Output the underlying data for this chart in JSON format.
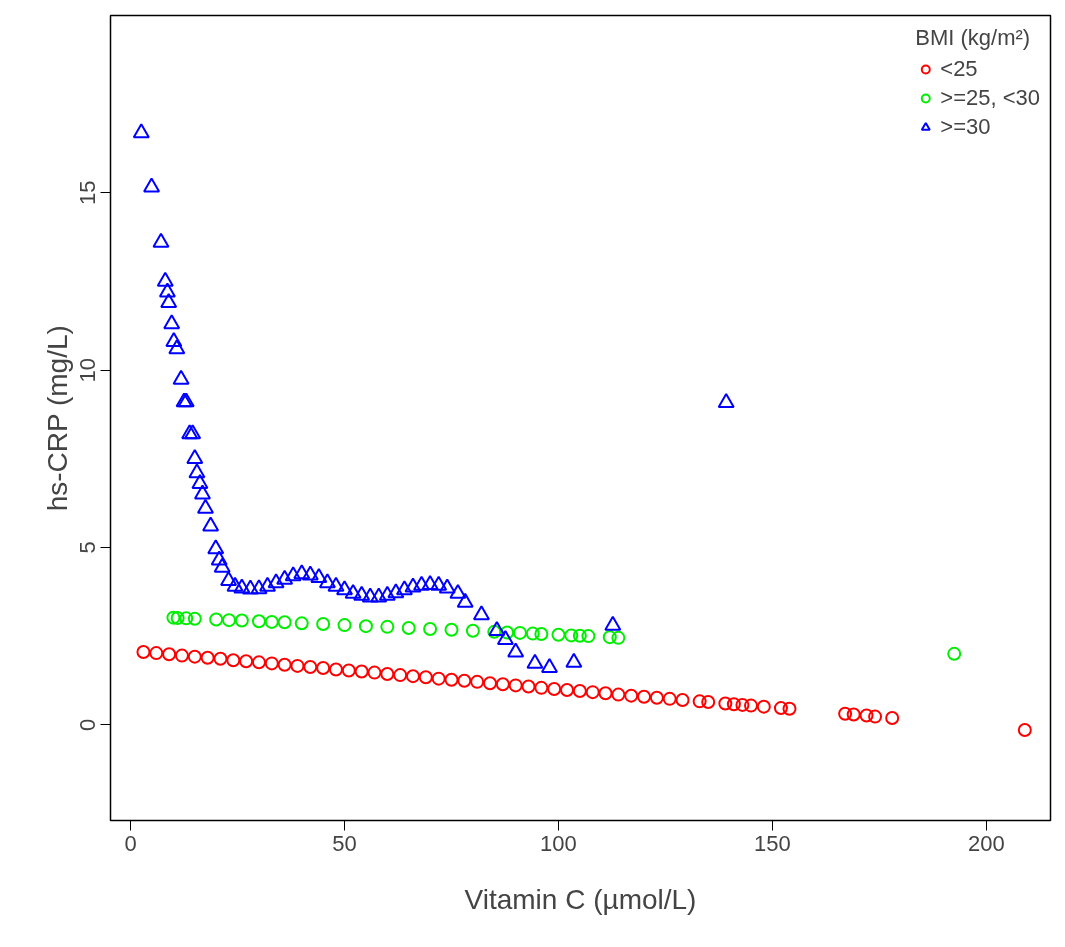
{
  "chart_data": {
    "type": "scatter",
    "xlabel": "Vitamin C (µmol/L)",
    "ylabel": "hs-CRP (mg/L)",
    "legend_title": "BMI (kg/m²)",
    "legend": "top right",
    "grid": false,
    "xlim": [
      -4.7,
      215
    ],
    "ylim": [
      -2.7,
      20
    ],
    "xticks": [
      0,
      50,
      100,
      150,
      200
    ],
    "yticks": [
      0,
      5,
      10,
      15
    ],
    "series": [
      {
        "name": "<25",
        "color": "#ff0000",
        "marker": "circle",
        "x": [
          3,
          6,
          9,
          12,
          15,
          18,
          21,
          24,
          27,
          30,
          33,
          36,
          39,
          42,
          45,
          48,
          51,
          54,
          57,
          60,
          63,
          66,
          69,
          72,
          75,
          78,
          81,
          84,
          87,
          90,
          93,
          96,
          99,
          102,
          105,
          108,
          111,
          114,
          117,
          120,
          123,
          126,
          129,
          133,
          135,
          139,
          141,
          143,
          145,
          148,
          152,
          154,
          167,
          169,
          172,
          174,
          178,
          209
        ],
        "values": [
          2.05,
          2.02,
          1.99,
          1.95,
          1.92,
          1.89,
          1.86,
          1.82,
          1.79,
          1.76,
          1.73,
          1.69,
          1.66,
          1.63,
          1.6,
          1.56,
          1.53,
          1.5,
          1.47,
          1.43,
          1.4,
          1.37,
          1.34,
          1.3,
          1.27,
          1.24,
          1.21,
          1.17,
          1.14,
          1.11,
          1.08,
          1.04,
          1.01,
          0.98,
          0.95,
          0.92,
          0.89,
          0.85,
          0.82,
          0.79,
          0.76,
          0.73,
          0.7,
          0.66,
          0.64,
          0.6,
          0.58,
          0.56,
          0.54,
          0.51,
          0.47,
          0.45,
          0.31,
          0.29,
          0.26,
          0.23,
          0.19,
          -0.15
        ]
      },
      {
        "name": ">=25, <30",
        "color": "#00ee00",
        "marker": "circle",
        "x": [
          10,
          11,
          13,
          15,
          20,
          23,
          26,
          30,
          33,
          36,
          40,
          45,
          50,
          55,
          60,
          65,
          70,
          75,
          80,
          85,
          88,
          91,
          94,
          96,
          100,
          103,
          105,
          107,
          112,
          114,
          192.5
        ],
        "values": [
          3.02,
          3.01,
          3.0,
          2.99,
          2.97,
          2.95,
          2.94,
          2.92,
          2.9,
          2.89,
          2.86,
          2.84,
          2.81,
          2.78,
          2.76,
          2.73,
          2.7,
          2.68,
          2.65,
          2.62,
          2.6,
          2.59,
          2.57,
          2.56,
          2.54,
          2.52,
          2.51,
          2.5,
          2.47,
          2.45,
          2.0
        ]
      },
      {
        "name": ">=30",
        "color": "#0000ff",
        "marker": "triangle",
        "x": [
          2.5,
          4.9,
          7.1,
          8.1,
          8.6,
          8.9,
          9.6,
          10.1,
          10.8,
          11.8,
          12.5,
          13,
          13.8,
          14.5,
          15,
          15.5,
          16.2,
          16.8,
          17.5,
          18.7,
          19.9,
          20.7,
          21.4,
          22.9,
          24.4,
          26,
          28,
          30,
          32,
          34,
          36,
          38,
          40,
          42,
          44,
          46,
          48,
          50,
          52,
          54,
          56,
          58,
          60,
          62,
          64,
          66,
          68,
          70,
          72,
          74,
          76.5,
          78.2,
          82,
          85.6,
          87.6,
          90,
          94.5,
          97.9,
          103.6,
          112.7,
          139.2
        ],
        "values": [
          16.69,
          15.16,
          13.6,
          12.5,
          12.2,
          11.9,
          11.3,
          10.8,
          10.6,
          9.74,
          9.1,
          9.1,
          8.2,
          8.2,
          7.5,
          7.1,
          6.8,
          6.5,
          6.1,
          5.6,
          4.96,
          4.64,
          4.44,
          4.06,
          3.9,
          3.85,
          3.82,
          3.83,
          3.9,
          4.0,
          4.1,
          4.2,
          4.25,
          4.22,
          4.15,
          4.0,
          3.9,
          3.8,
          3.7,
          3.65,
          3.6,
          3.6,
          3.65,
          3.72,
          3.8,
          3.88,
          3.93,
          3.95,
          3.93,
          3.85,
          3.7,
          3.45,
          3.1,
          2.65,
          2.4,
          2.05,
          1.73,
          1.61,
          1.76,
          2.8,
          9.08
        ]
      }
    ]
  }
}
